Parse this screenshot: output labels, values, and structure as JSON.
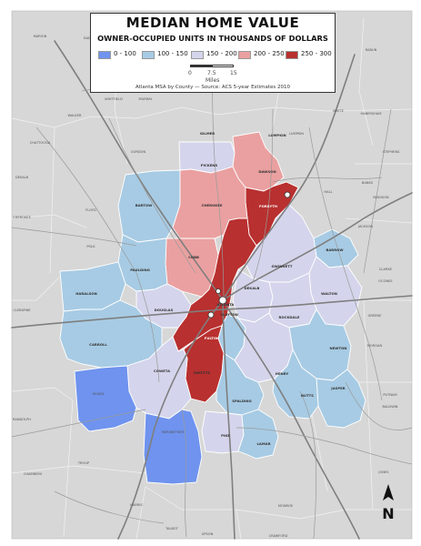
{
  "legend": {
    "title": "MEDIAN HOME VALUE",
    "subtitle": "OWNER-OCCUPIED UNITS IN THOUSANDS OF DOLLARS",
    "classes": [
      {
        "label": "0 - 100",
        "color": "#6f93ee"
      },
      {
        "label": "100 - 150",
        "color": "#a7cbe4"
      },
      {
        "label": "150 - 200",
        "color": "#d4d5ec"
      },
      {
        "label": "200 - 250",
        "color": "#eaa0a0"
      },
      {
        "label": "250 - 300",
        "color": "#b8302f"
      }
    ],
    "scale": {
      "ticks": [
        "0",
        "7.5",
        "15"
      ],
      "units": "Miles"
    },
    "source": "Atlanta MSA by County — Source: ACS 5-year Estimates 2010"
  },
  "north": "N",
  "colors": {
    "background": "#d7d7d7",
    "roads": "#8a8a8a",
    "county_lines": "#ffffff"
  },
  "counties": [
    {
      "name": "Pickens",
      "class": 2
    },
    {
      "name": "Dawson",
      "class": 3
    },
    {
      "name": "Forsyth",
      "class": 4
    },
    {
      "name": "Bartow",
      "class": 1
    },
    {
      "name": "Cherokee",
      "class": 3
    },
    {
      "name": "Barrow",
      "class": 1
    },
    {
      "name": "Cobb",
      "class": 3
    },
    {
      "name": "Gwinnett",
      "class": 2
    },
    {
      "name": "Paulding",
      "class": 1
    },
    {
      "name": "Walton",
      "class": 2
    },
    {
      "name": "Haralson",
      "class": 1
    },
    {
      "name": "Douglas",
      "class": 2
    },
    {
      "name": "DeKalb",
      "class": 2
    },
    {
      "name": "Rockdale",
      "class": 2
    },
    {
      "name": "Carroll",
      "class": 1
    },
    {
      "name": "Fulton",
      "class": 4
    },
    {
      "name": "Clayton",
      "class": 1
    },
    {
      "name": "Newton",
      "class": 1
    },
    {
      "name": "Henry",
      "class": 2
    },
    {
      "name": "Fayette",
      "class": 4
    },
    {
      "name": "Coweta",
      "class": 2
    },
    {
      "name": "Jasper",
      "class": 1
    },
    {
      "name": "Butts",
      "class": 1
    },
    {
      "name": "Spalding",
      "class": 1
    },
    {
      "name": "Heard",
      "class": 0
    },
    {
      "name": "Meriwether",
      "class": 0
    },
    {
      "name": "Pike",
      "class": 2
    },
    {
      "name": "Lamar",
      "class": 1
    }
  ],
  "places": [
    "MARION",
    "DADE",
    "WHITFIELD",
    "MURRAY",
    "FANNIN",
    "UNION",
    "TOWNS",
    "RABUN",
    "HABERSHAM",
    "LUMPKIN",
    "WHITE",
    "WALKER",
    "CHATTOOGA",
    "DEKALB",
    "FLOYD",
    "GORDON",
    "POLK",
    "CHEROKEE",
    "CLEBURNE",
    "RANDOLPH",
    "CHAMBERS",
    "TROUP",
    "HARRIS",
    "TALBOT",
    "UPSON",
    "MONROE",
    "CRAWFORD",
    "JONES",
    "BALDWIN",
    "PUTNAM",
    "MORGAN",
    "GREENE",
    "OCONEE",
    "CLARKE",
    "JACKSON",
    "MADISON",
    "BANKS",
    "HALL",
    "STEPHENS",
    "HEARD",
    "MERIWETHER",
    "ATLANTA",
    "CLAYTON",
    "HENRY",
    "FAYETTE",
    "COWETA",
    "CARROLL",
    "BUTTS",
    "JASPER",
    "NEWTON",
    "WALTON",
    "BARROW",
    "GWINNETT",
    "DEKALB",
    "ROCKDALE",
    "DOUGLAS",
    "PAULDING",
    "HARALSON",
    "BARTOW",
    "CHEROKEE",
    "PICKENS",
    "DAWSON",
    "FORSYTH",
    "COBB",
    "FULTON",
    "SPALDING",
    "PIKE",
    "LAMAR",
    "LUMPKIN",
    "GILMER"
  ]
}
